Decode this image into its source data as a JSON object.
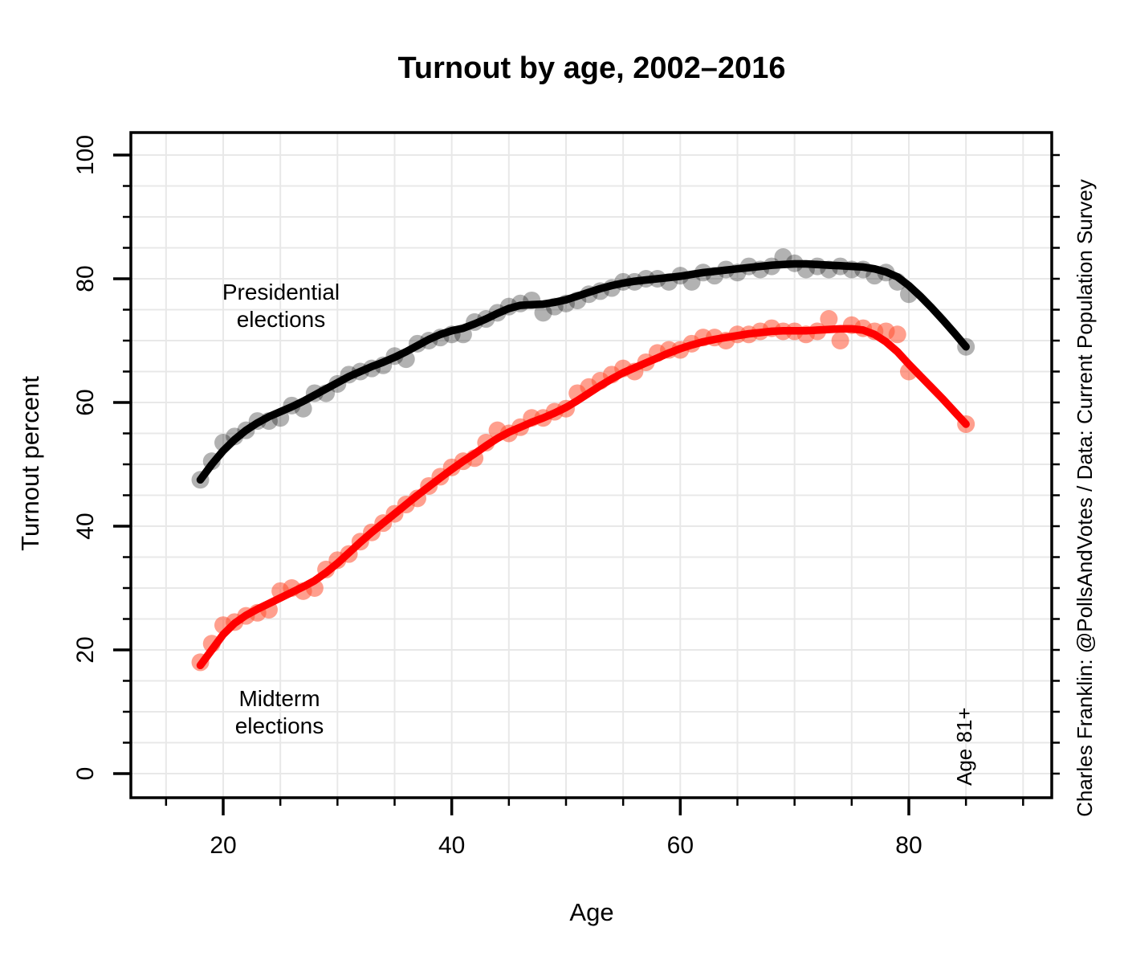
{
  "title": "Turnout by age, 2002–2016",
  "axes": {
    "x_label": "Age",
    "y_label": "Turnout percent",
    "x_ticks": [
      20,
      40,
      60,
      80
    ],
    "y_ticks": [
      0,
      20,
      40,
      60,
      80,
      100
    ],
    "minor_step": 5,
    "x_minor_range": [
      15,
      90
    ],
    "y_minor_range": [
      0,
      100
    ]
  },
  "annotations": {
    "presidential_line1": "Presidential",
    "presidential_line2": "elections",
    "midterm_line1": "Midterm",
    "midterm_line2": "elections",
    "age81": "Age 81+",
    "credit": "Charles Franklin: @PollsAndVotes / Data: Current Population Survey"
  },
  "colors": {
    "presidential_line": "#000000",
    "presidential_point": "rgba(0,0,0,0.30)",
    "midterm_line": "#FF0000",
    "midterm_point": "rgba(255,80,50,0.55)",
    "grid": "#E8E8E8",
    "axis": "#000000",
    "credit_text": "#00008B",
    "age81_text": "#9E9E9E",
    "midterm_label": "#D02323",
    "presidential_label": "#000000"
  },
  "chart_data": {
    "type": "scatter",
    "title": "Turnout by age, 2002–2016",
    "xlabel": "Age",
    "ylabel": "Turnout percent",
    "xlim": [
      11.9,
      92.5
    ],
    "ylim": [
      -3.9,
      103.6
    ],
    "grid": "on, every 5 units both axes",
    "note": "Last point of each series is the aggregated Age 81+ group plotted at age 85",
    "series": [
      {
        "name": "Presidential elections",
        "points": [
          [
            18,
            47.5
          ],
          [
            19,
            50.5
          ],
          [
            20,
            53.5
          ],
          [
            21,
            54.5
          ],
          [
            22,
            55.5
          ],
          [
            23,
            57
          ],
          [
            24,
            57
          ],
          [
            25,
            57.5
          ],
          [
            26,
            59.5
          ],
          [
            27,
            59
          ],
          [
            28,
            61.5
          ],
          [
            29,
            61.5
          ],
          [
            30,
            63
          ],
          [
            31,
            64.5
          ],
          [
            32,
            65
          ],
          [
            33,
            65.5
          ],
          [
            34,
            66
          ],
          [
            35,
            67.5
          ],
          [
            36,
            67
          ],
          [
            37,
            69.5
          ],
          [
            38,
            70
          ],
          [
            39,
            70.5
          ],
          [
            40,
            71
          ],
          [
            41,
            71
          ],
          [
            42,
            73
          ],
          [
            43,
            73.5
          ],
          [
            44,
            74.5
          ],
          [
            45,
            75.5
          ],
          [
            46,
            76
          ],
          [
            47,
            76.5
          ],
          [
            48,
            74.5
          ],
          [
            49,
            75.5
          ],
          [
            50,
            76
          ],
          [
            51,
            76.5
          ],
          [
            52,
            77.5
          ],
          [
            53,
            78
          ],
          [
            54,
            78.5
          ],
          [
            55,
            79.5
          ],
          [
            56,
            79.5
          ],
          [
            57,
            80
          ],
          [
            58,
            80
          ],
          [
            59,
            79.5
          ],
          [
            60,
            80.5
          ],
          [
            61,
            79.5
          ],
          [
            62,
            81
          ],
          [
            63,
            80.5
          ],
          [
            64,
            81.5
          ],
          [
            65,
            81
          ],
          [
            66,
            82
          ],
          [
            67,
            81.5
          ],
          [
            68,
            82
          ],
          [
            69,
            83.5
          ],
          [
            70,
            82.5
          ],
          [
            71,
            81.5
          ],
          [
            72,
            82
          ],
          [
            73,
            81.5
          ],
          [
            74,
            82
          ],
          [
            75,
            81.5
          ],
          [
            76,
            81.5
          ],
          [
            77,
            80.5
          ],
          [
            78,
            81
          ],
          [
            79,
            79.5
          ],
          [
            80,
            77.5
          ],
          [
            85,
            69
          ]
        ],
        "trend_ages": [
          18,
          19,
          20,
          21,
          22,
          23,
          24,
          25,
          26,
          27,
          28,
          29,
          30,
          31,
          32,
          33,
          34,
          35,
          36,
          37,
          38,
          39,
          40,
          41,
          42,
          43,
          44,
          45,
          46,
          47,
          48,
          49,
          50,
          51,
          52,
          53,
          54,
          55,
          56,
          57,
          58,
          59,
          60,
          61,
          62,
          63,
          64,
          65,
          66,
          67,
          68,
          69,
          70,
          71,
          72,
          73,
          74,
          75,
          76,
          77,
          78,
          79,
          80,
          81,
          82,
          83,
          84,
          85
        ],
        "trend_values": [
          47.5,
          50.0,
          52.2,
          54.0,
          55.5,
          56.7,
          57.7,
          58.5,
          59.3,
          60.2,
          61.2,
          62.2,
          63.2,
          64.2,
          65.0,
          65.8,
          66.5,
          67.3,
          68.2,
          69.2,
          70.2,
          71.0,
          71.6,
          72.0,
          72.7,
          73.5,
          74.4,
          75.2,
          75.7,
          75.8,
          75.9,
          76.2,
          76.6,
          77.2,
          77.8,
          78.4,
          78.9,
          79.3,
          79.6,
          79.8,
          80.0,
          80.2,
          80.4,
          80.7,
          81.0,
          81.2,
          81.4,
          81.6,
          81.8,
          82.0,
          82.2,
          82.3,
          82.4,
          82.4,
          82.3,
          82.2,
          82.1,
          82.0,
          81.9,
          81.6,
          81.1,
          80.3,
          78.9,
          77.2,
          75.3,
          73.3,
          71.2,
          69.0
        ]
      },
      {
        "name": "Midterm elections",
        "points": [
          [
            18,
            18
          ],
          [
            19,
            21
          ],
          [
            20,
            24
          ],
          [
            21,
            24.5
          ],
          [
            22,
            25.5
          ],
          [
            23,
            26
          ],
          [
            24,
            26.5
          ],
          [
            25,
            29.5
          ],
          [
            26,
            30
          ],
          [
            27,
            29.5
          ],
          [
            28,
            30
          ],
          [
            29,
            33
          ],
          [
            30,
            34.5
          ],
          [
            31,
            35.5
          ],
          [
            32,
            37.5
          ],
          [
            33,
            39
          ],
          [
            34,
            40.5
          ],
          [
            35,
            42
          ],
          [
            36,
            43.5
          ],
          [
            37,
            44.5
          ],
          [
            38,
            46.5
          ],
          [
            39,
            48
          ],
          [
            40,
            49.5
          ],
          [
            41,
            50.5
          ],
          [
            42,
            51
          ],
          [
            43,
            53.5
          ],
          [
            44,
            55.5
          ],
          [
            45,
            55
          ],
          [
            46,
            56
          ],
          [
            47,
            57.5
          ],
          [
            48,
            57.5
          ],
          [
            49,
            58.5
          ],
          [
            50,
            59
          ],
          [
            51,
            61.5
          ],
          [
            52,
            62.5
          ],
          [
            53,
            63.5
          ],
          [
            54,
            64.5
          ],
          [
            55,
            65.5
          ],
          [
            56,
            65
          ],
          [
            57,
            66.5
          ],
          [
            58,
            68
          ],
          [
            59,
            68.5
          ],
          [
            60,
            68.5
          ],
          [
            61,
            69.5
          ],
          [
            62,
            70.5
          ],
          [
            63,
            70.5
          ],
          [
            64,
            70
          ],
          [
            65,
            71
          ],
          [
            66,
            71
          ],
          [
            67,
            71.5
          ],
          [
            68,
            72
          ],
          [
            69,
            71.5
          ],
          [
            70,
            71.5
          ],
          [
            71,
            71
          ],
          [
            72,
            71.5
          ],
          [
            73,
            73.5
          ],
          [
            74,
            70
          ],
          [
            75,
            72.5
          ],
          [
            76,
            72
          ],
          [
            77,
            71.5
          ],
          [
            78,
            71.5
          ],
          [
            79,
            71
          ],
          [
            80,
            65
          ],
          [
            85,
            56.5
          ]
        ],
        "trend_ages": [
          18,
          19,
          20,
          21,
          22,
          23,
          24,
          25,
          26,
          27,
          28,
          29,
          30,
          31,
          32,
          33,
          34,
          35,
          36,
          37,
          38,
          39,
          40,
          41,
          42,
          43,
          44,
          45,
          46,
          47,
          48,
          49,
          50,
          51,
          52,
          53,
          54,
          55,
          56,
          57,
          58,
          59,
          60,
          61,
          62,
          63,
          64,
          65,
          66,
          67,
          68,
          69,
          70,
          71,
          72,
          73,
          74,
          75,
          76,
          77,
          78,
          79,
          80,
          81,
          82,
          83,
          84,
          85
        ],
        "trend_values": [
          17.5,
          20.0,
          22.5,
          24.3,
          25.6,
          26.6,
          27.5,
          28.4,
          29.3,
          30.2,
          31.2,
          32.5,
          34.0,
          35.7,
          37.4,
          39.0,
          40.5,
          42.0,
          43.5,
          45.0,
          46.4,
          47.8,
          49.2,
          50.5,
          51.7,
          53.0,
          54.2,
          55.2,
          56.0,
          56.8,
          57.5,
          58.3,
          59.2,
          60.3,
          61.5,
          62.7,
          63.8,
          64.8,
          65.6,
          66.4,
          67.2,
          68.0,
          68.7,
          69.3,
          69.8,
          70.2,
          70.5,
          70.8,
          71.1,
          71.3,
          71.5,
          71.6,
          71.6,
          71.6,
          71.7,
          71.8,
          71.9,
          71.9,
          71.7,
          71.0,
          69.8,
          68.2,
          66.2,
          64.3,
          62.4,
          60.5,
          58.5,
          56.5
        ]
      }
    ]
  }
}
